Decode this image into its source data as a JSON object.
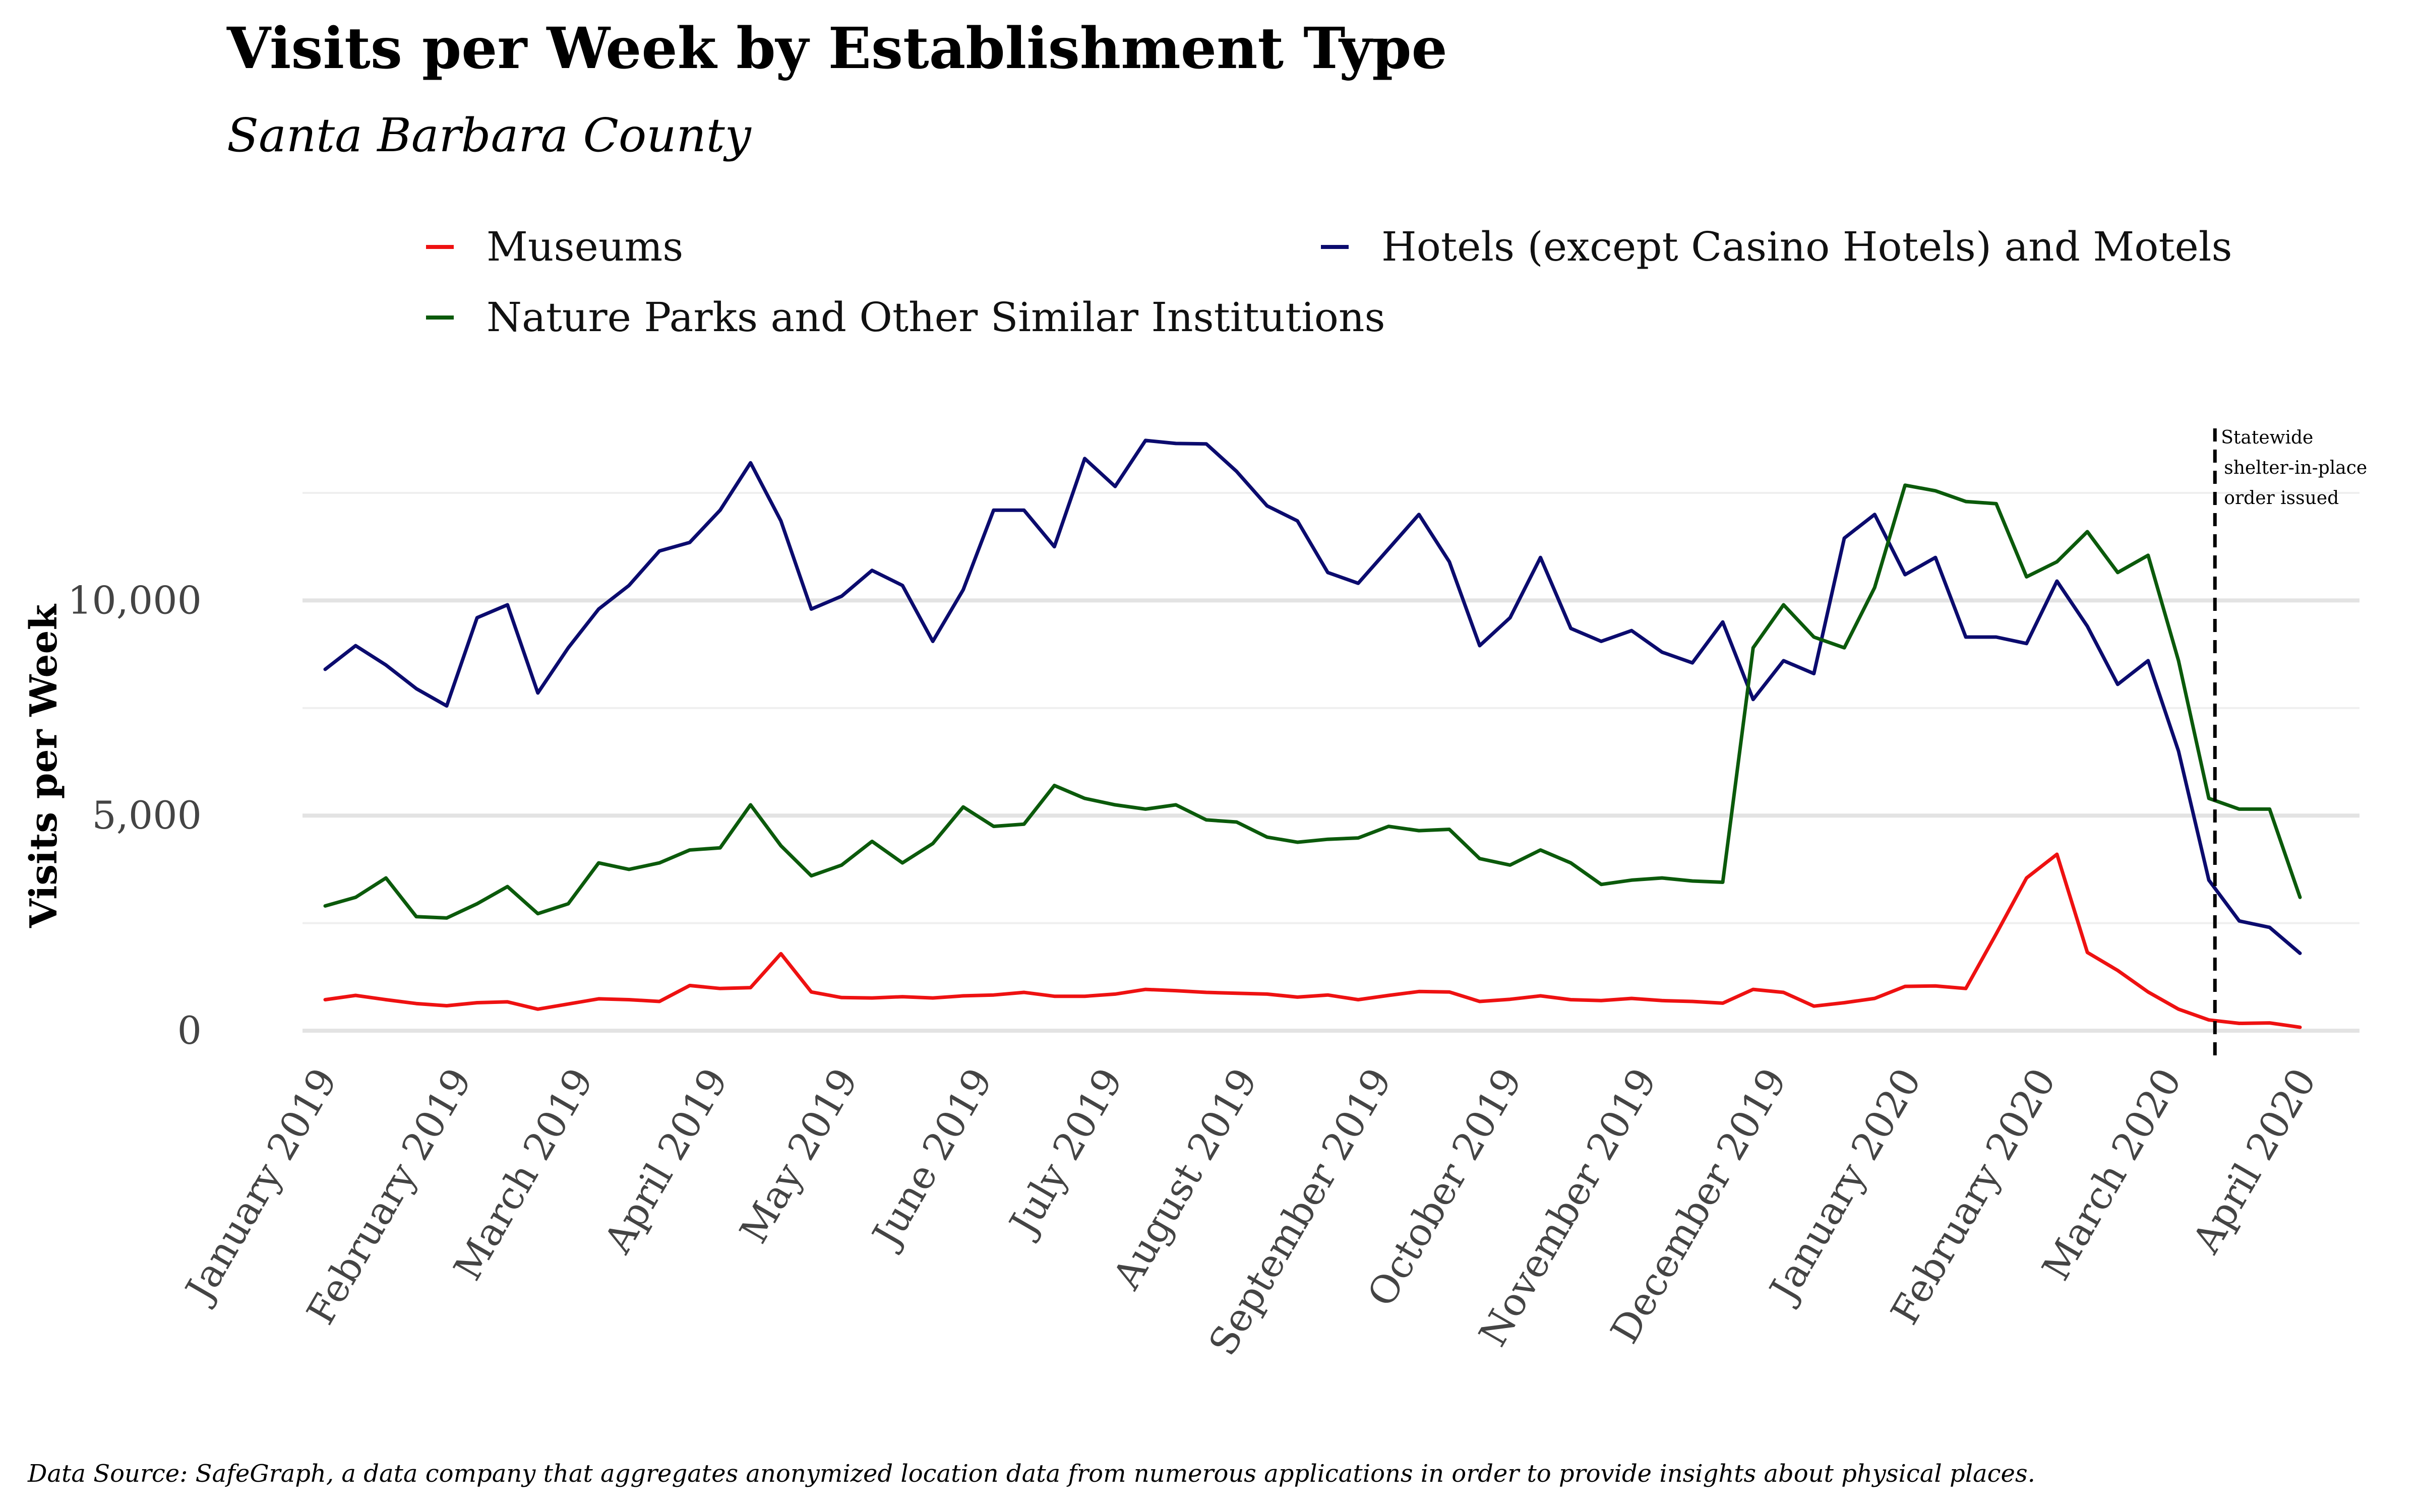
{
  "chart_data": {
    "type": "line",
    "title": "Visits per Week by Establishment Type",
    "subtitle": "Santa Barbara County",
    "ylabel": "Visits per Week",
    "xlabel": "",
    "caption": "Data Source: SafeGraph, a data company that aggregates anonymized location data from numerous applications in order to provide insights about physical places.",
    "ylim": [
      0,
      14000
    ],
    "yticks": [
      0,
      5000,
      10000
    ],
    "ytick_labels": [
      "0",
      "5,000",
      "10,000"
    ],
    "xticks": [
      {
        "label": "January 2019",
        "week": 0
      },
      {
        "label": "February 2019",
        "week": 4.43
      },
      {
        "label": "March 2019",
        "week": 8.43
      },
      {
        "label": "April 2019",
        "week": 12.86
      },
      {
        "label": "May 2019",
        "week": 17.14
      },
      {
        "label": "June 2019",
        "week": 21.57
      },
      {
        "label": "July 2019",
        "week": 25.86
      },
      {
        "label": "August 2019",
        "week": 30.29
      },
      {
        "label": "September 2019",
        "week": 34.71
      },
      {
        "label": "October 2019",
        "week": 39.0
      },
      {
        "label": "November 2019",
        "week": 43.43
      },
      {
        "label": "December 2019",
        "week": 47.71
      },
      {
        "label": "January 2020",
        "week": 52.14
      },
      {
        "label": "February 2020",
        "week": 56.57
      },
      {
        "label": "March 2020",
        "week": 60.71
      },
      {
        "label": "April 2020",
        "week": 65.14
      }
    ],
    "legend_position": "top",
    "grid": true,
    "series": [
      {
        "name": "Museums",
        "color": "#ee1111",
        "values": [
          720,
          820,
          720,
          630,
          580,
          650,
          670,
          500,
          620,
          740,
          720,
          680,
          1050,
          980,
          1000,
          1790,
          900,
          770,
          760,
          790,
          760,
          810,
          830,
          890,
          800,
          800,
          850,
          960,
          930,
          890,
          870,
          850,
          780,
          830,
          720,
          820,
          910,
          900,
          680,
          730,
          810,
          720,
          700,
          750,
          700,
          680,
          640,
          960,
          890,
          570,
          650,
          750,
          1030,
          1040,
          980,
          2250,
          3550,
          4100,
          1820,
          1400,
          900,
          500,
          250,
          170,
          180,
          80
        ]
      },
      {
        "name": "Hotels (except Casino Hotels) and Motels",
        "color": "#0b0b6e",
        "values": [
          8400,
          8950,
          8500,
          7950,
          7550,
          9600,
          9900,
          7850,
          8900,
          9800,
          10350,
          11150,
          11350,
          12100,
          13200,
          11850,
          9800,
          10100,
          10700,
          10350,
          9050,
          10250,
          12100,
          12100,
          11250,
          13300,
          12650,
          13720,
          13650,
          13640,
          13000,
          12200,
          11850,
          10650,
          10400,
          11200,
          12000,
          10900,
          8950,
          9600,
          11000,
          9350,
          9050,
          9300,
          8800,
          8550,
          9500,
          7700,
          8600,
          8300,
          11450,
          12000,
          10600,
          11000,
          9150,
          9150,
          9000,
          10450,
          9400,
          8050,
          8600,
          6500,
          3500,
          2550,
          2400,
          1800
        ]
      },
      {
        "name": "Nature Parks and Other Similar Institutions",
        "color": "#0b5a0b",
        "values": [
          2900,
          3100,
          3550,
          2650,
          2620,
          2950,
          3350,
          2720,
          2950,
          3900,
          3750,
          3900,
          4200,
          4250,
          5250,
          4300,
          3600,
          3850,
          4400,
          3900,
          4350,
          5200,
          4750,
          4800,
          5700,
          5400,
          5250,
          5150,
          5250,
          4900,
          4850,
          4500,
          4380,
          4450,
          4480,
          4750,
          4650,
          4680,
          4000,
          3850,
          4200,
          3900,
          3400,
          3500,
          3550,
          3480,
          3450,
          8900,
          9900,
          9150,
          8900,
          10300,
          12680,
          12550,
          12300,
          12250,
          10550,
          10900,
          11600,
          10650,
          11050,
          8600,
          5400,
          5150,
          5150,
          3100
        ]
      }
    ],
    "annotations": [
      {
        "week": 62.2,
        "lines": [
          "Statewide",
          "shelter-in-place",
          "order issued"
        ]
      }
    ]
  }
}
